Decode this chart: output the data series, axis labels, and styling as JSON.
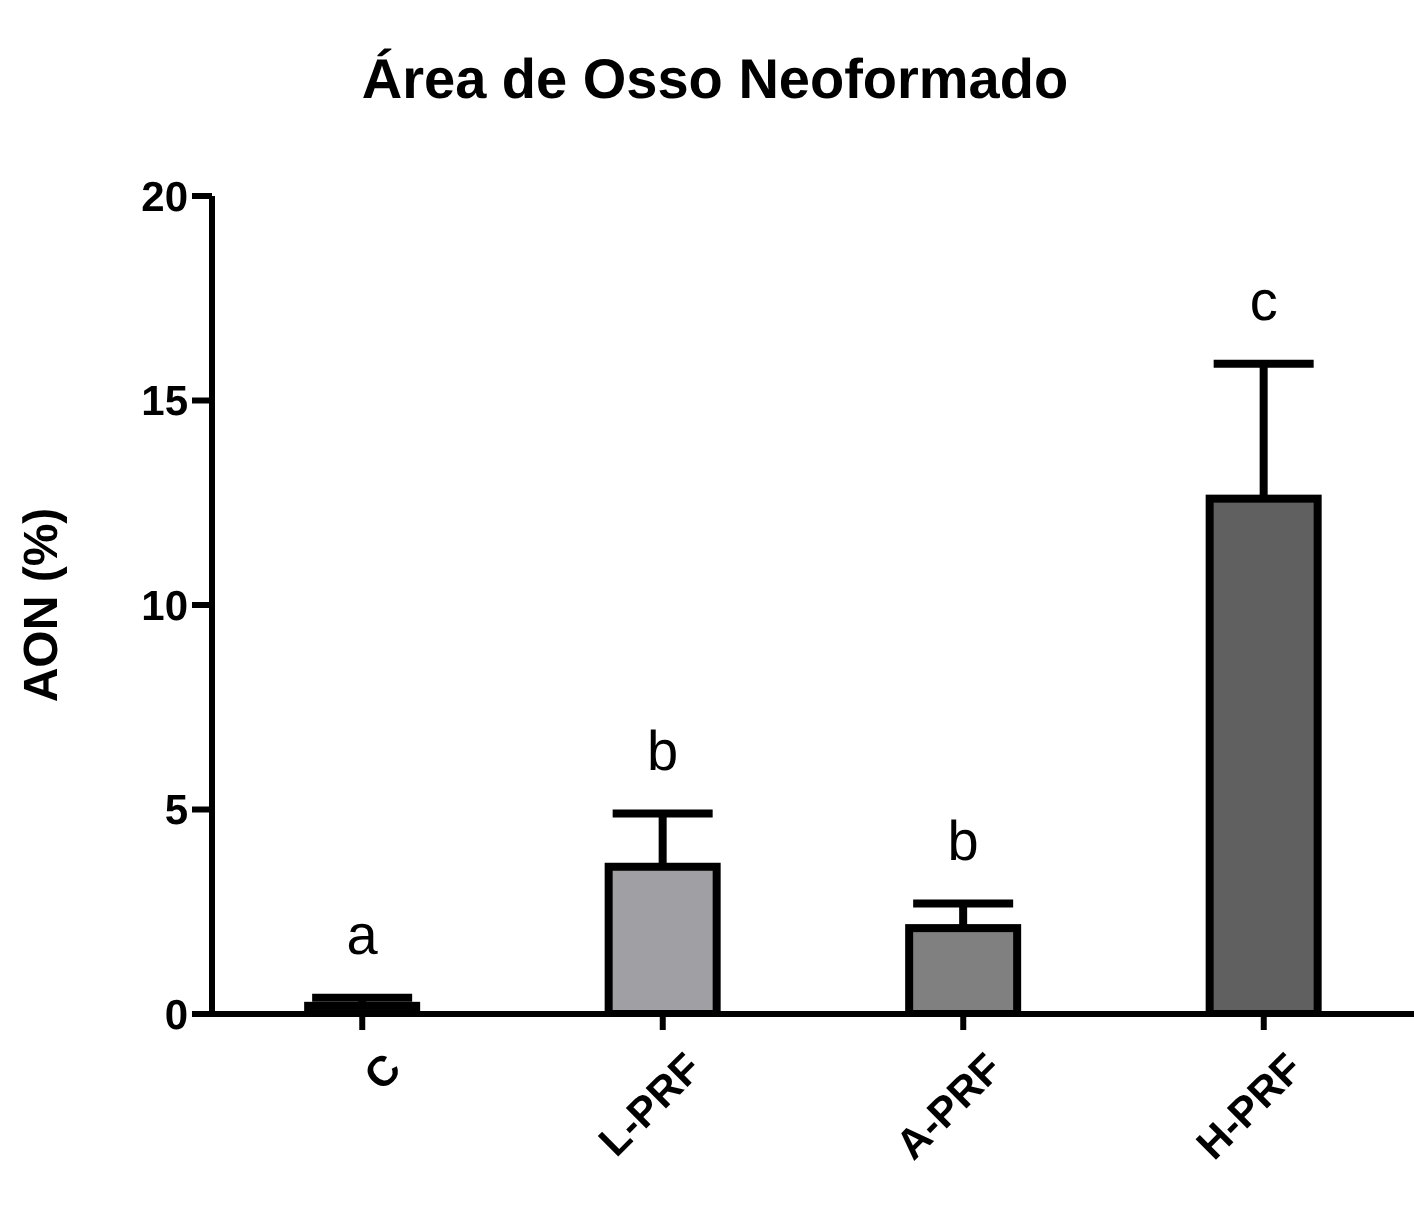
{
  "chart_data": {
    "type": "bar",
    "title": "Área de Osso Neoformado",
    "ylabel": "AON (%)",
    "categories": [
      "C",
      "L-PRF",
      "A-PRF",
      "H-PRF"
    ],
    "values": [
      0.2,
      3.6,
      2.1,
      12.6
    ],
    "colors": [
      "#111111",
      "#a0a0a4",
      "#808080",
      "#606060"
    ],
    "errors": [
      [
        0.2,
        0.4
      ],
      [
        3.6,
        4.9
      ],
      [
        2.1,
        2.7
      ],
      [
        12.6,
        15.9
      ]
    ],
    "ylim": [
      0,
      20
    ],
    "yticks": [
      0,
      5,
      10,
      15,
      20
    ],
    "annotations": [
      "a",
      "b",
      "b",
      "c"
    ]
  }
}
